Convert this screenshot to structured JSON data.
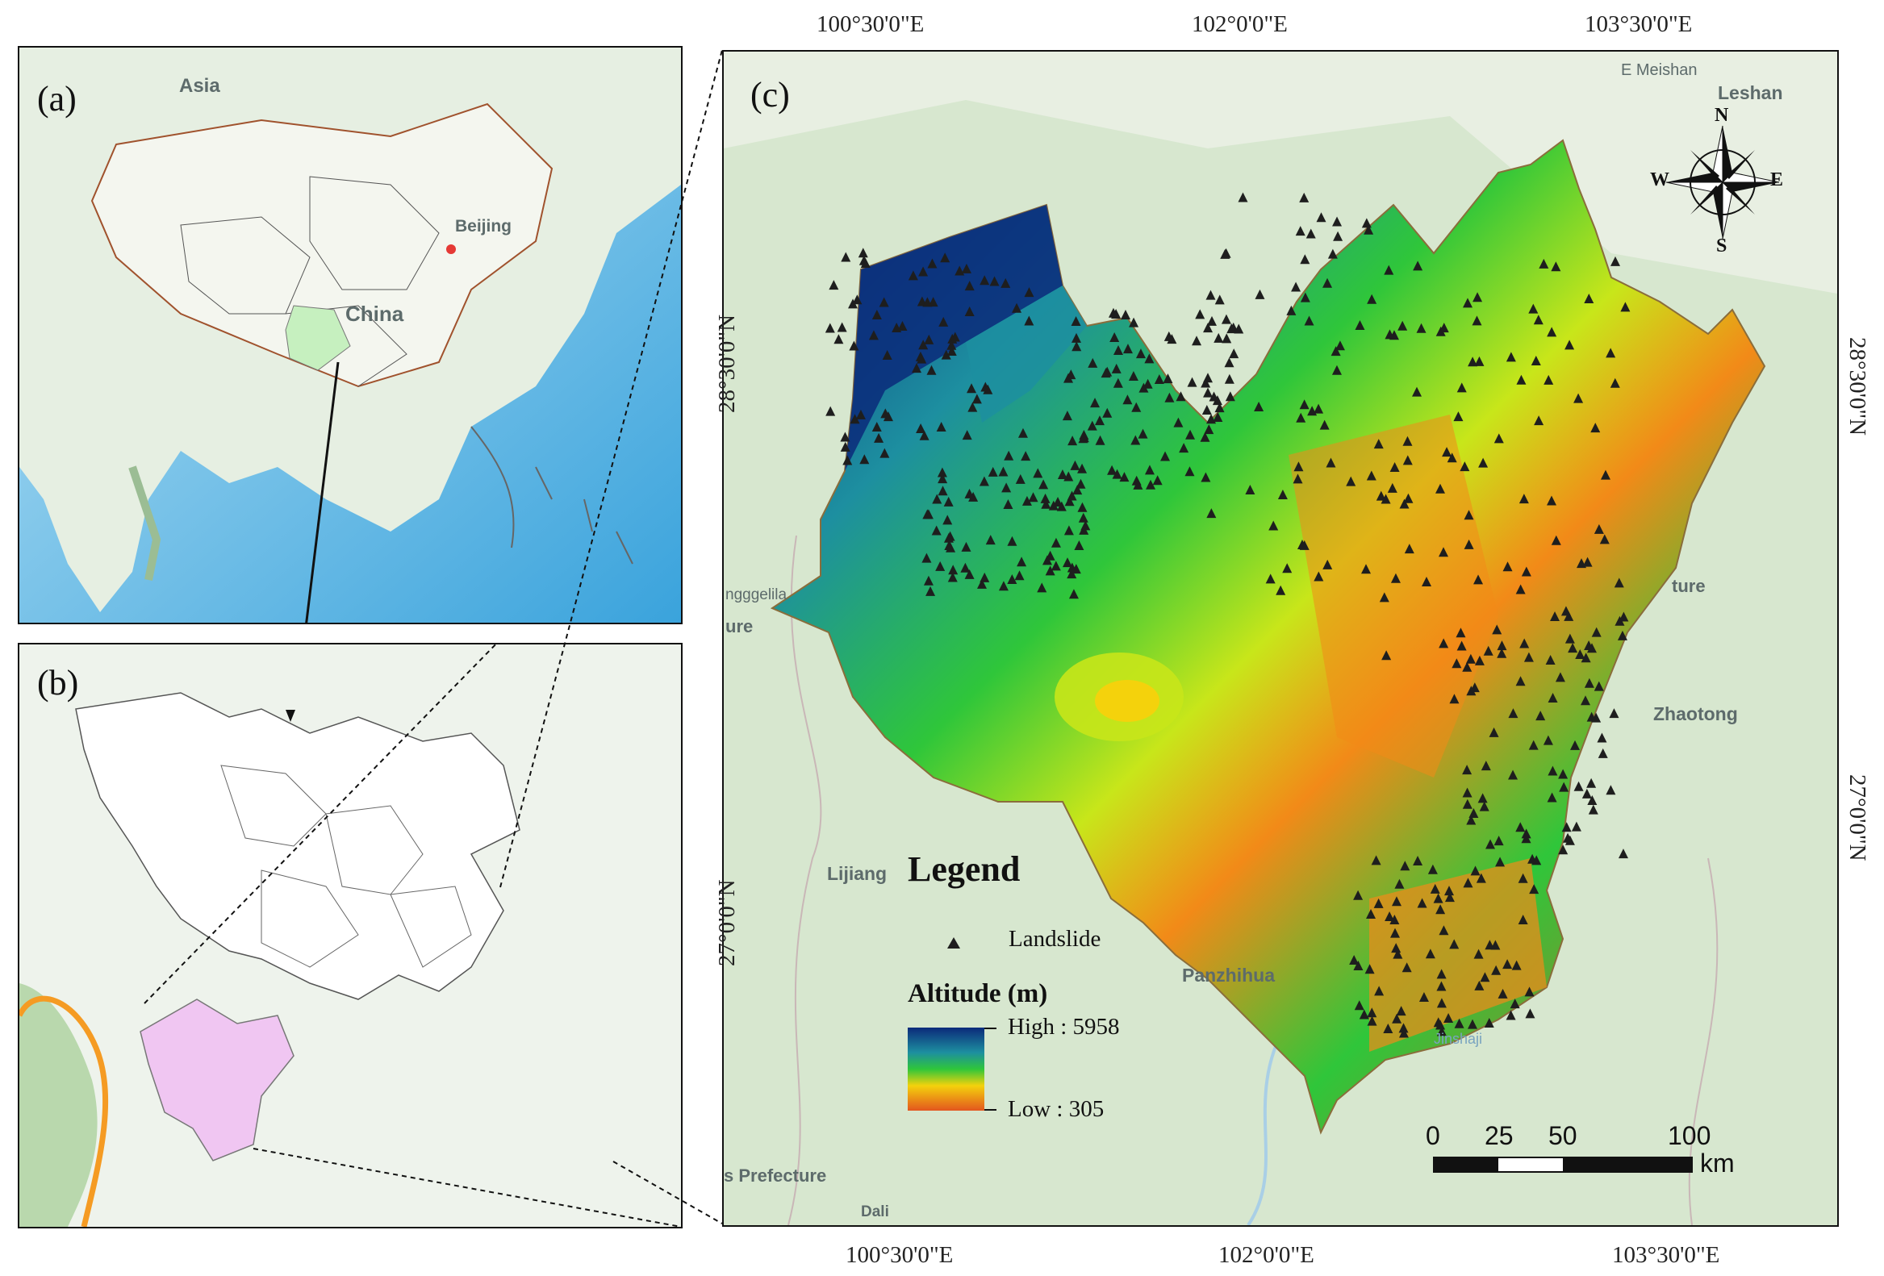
{
  "panel_a": {
    "label": "(a)",
    "places": {
      "asia": "Asia",
      "beijing": "Beijing",
      "china": "China"
    }
  },
  "panel_b": {
    "label": "(b)"
  },
  "panel_c": {
    "label": "(c)",
    "places": {
      "meishan": "E Meishan",
      "leshan": "Leshan",
      "zhaotong": "Zhaotong",
      "lijiang": "Lijiang",
      "panzhihua": "Panzhihua",
      "dali": "Dali",
      "shangrila": "ngggelila",
      "prefecture_left": "ure",
      "prefecture_right": "ture",
      "prefecture_bottom": "s Prefecture",
      "jinsha": "Jinshaji"
    },
    "top_axis": [
      "100°30'0\"E",
      "102°0'0\"E",
      "103°30'0\"E"
    ],
    "bottom_axis": [
      "100°30'0\"E",
      "102°0'0\"E",
      "103°30'0\"E"
    ],
    "left_axis": [
      "28°30'0\"N",
      "27°0'0\"N"
    ],
    "right_axis": [
      "28°30'0\"N",
      "27°0'0\"N"
    ],
    "compass": {
      "n": "N",
      "s": "S",
      "e": "E",
      "w": "W"
    },
    "legend": {
      "title": "Legend",
      "landslide": "Landslide",
      "altitude_title": "Altitude (m)",
      "high": "High : 5958",
      "low": "Low : 305",
      "ramp_colors": [
        "#0b2a7a",
        "#1d8fa0",
        "#2fc63a",
        "#c8e61a",
        "#f4d20c",
        "#f28a18",
        "#e3561e"
      ]
    },
    "scalebar": {
      "ticks": [
        "0",
        "25",
        "50",
        "100"
      ],
      "unit": "km"
    }
  },
  "colors": {
    "highlight_a": "#c6f0bf",
    "highlight_b": "#f0c6f2",
    "border_orange": "#f5a623",
    "marker": "#1e1e1e"
  }
}
